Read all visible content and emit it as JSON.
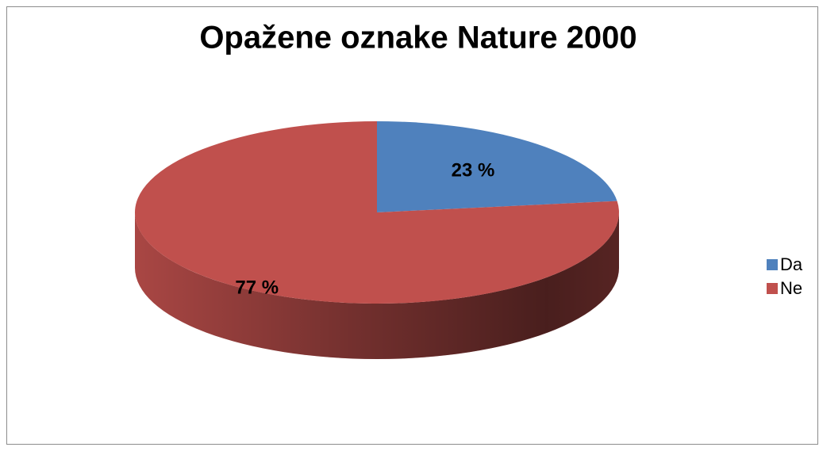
{
  "chart_data": {
    "type": "pie",
    "title": "Opažene oznake Nature 2000",
    "categories": [
      "Da",
      "Ne"
    ],
    "values": [
      23,
      77
    ],
    "value_labels": [
      "23 %",
      "77 %"
    ],
    "colors": [
      "#4f81bd",
      "#c0504d"
    ],
    "legend": "right"
  }
}
